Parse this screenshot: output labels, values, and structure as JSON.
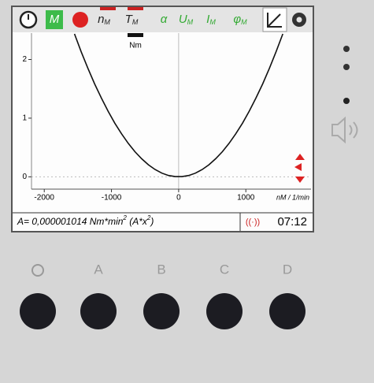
{
  "toolbar": {
    "items": [
      {
        "main": "M"
      },
      {
        "main": "n",
        "sub": "M"
      },
      {
        "main": "T",
        "sub": "M"
      },
      {
        "main": "α"
      },
      {
        "main": "U",
        "sub": "M"
      },
      {
        "main": "I",
        "sub": "M"
      },
      {
        "main": "φ",
        "sub": "M"
      }
    ],
    "unit": "Nm"
  },
  "chart_data": {
    "type": "line",
    "xlabel": "nM / 1/min",
    "x": [
      -1550,
      -1450,
      -1350,
      -1250,
      -1150,
      -1050,
      -950,
      -850,
      -750,
      -650,
      -550,
      -450,
      -350,
      -250,
      -150,
      -50,
      50,
      150,
      250,
      350,
      450,
      550,
      650,
      750,
      850,
      950,
      1050,
      1150,
      1250,
      1350,
      1450,
      1550
    ],
    "series": [
      {
        "color": "#111111",
        "values": [
          2.436,
          2.132,
          1.848,
          1.584,
          1.341,
          1.118,
          0.915,
          0.733,
          0.57,
          0.428,
          0.307,
          0.205,
          0.124,
          0.063,
          0.023,
          0.003,
          0.003,
          0.023,
          0.063,
          0.124,
          0.205,
          0.307,
          0.428,
          0.57,
          0.733,
          0.915,
          1.118,
          1.341,
          1.584,
          1.848,
          2.132,
          2.436
        ]
      }
    ],
    "xlim": [
      -2190,
      1970
    ],
    "ylim": [
      -0.21,
      2.45
    ],
    "xticks": [
      -2000,
      -1000,
      0,
      1000
    ],
    "yticks": [
      0,
      1,
      2
    ]
  },
  "status": {
    "formula": [
      "A= 0,000001014 Nm*min",
      "2",
      "  (A*x",
      "2",
      ")"
    ],
    "time": "07:12"
  },
  "buttons": [
    "A",
    "B",
    "C",
    "D"
  ]
}
